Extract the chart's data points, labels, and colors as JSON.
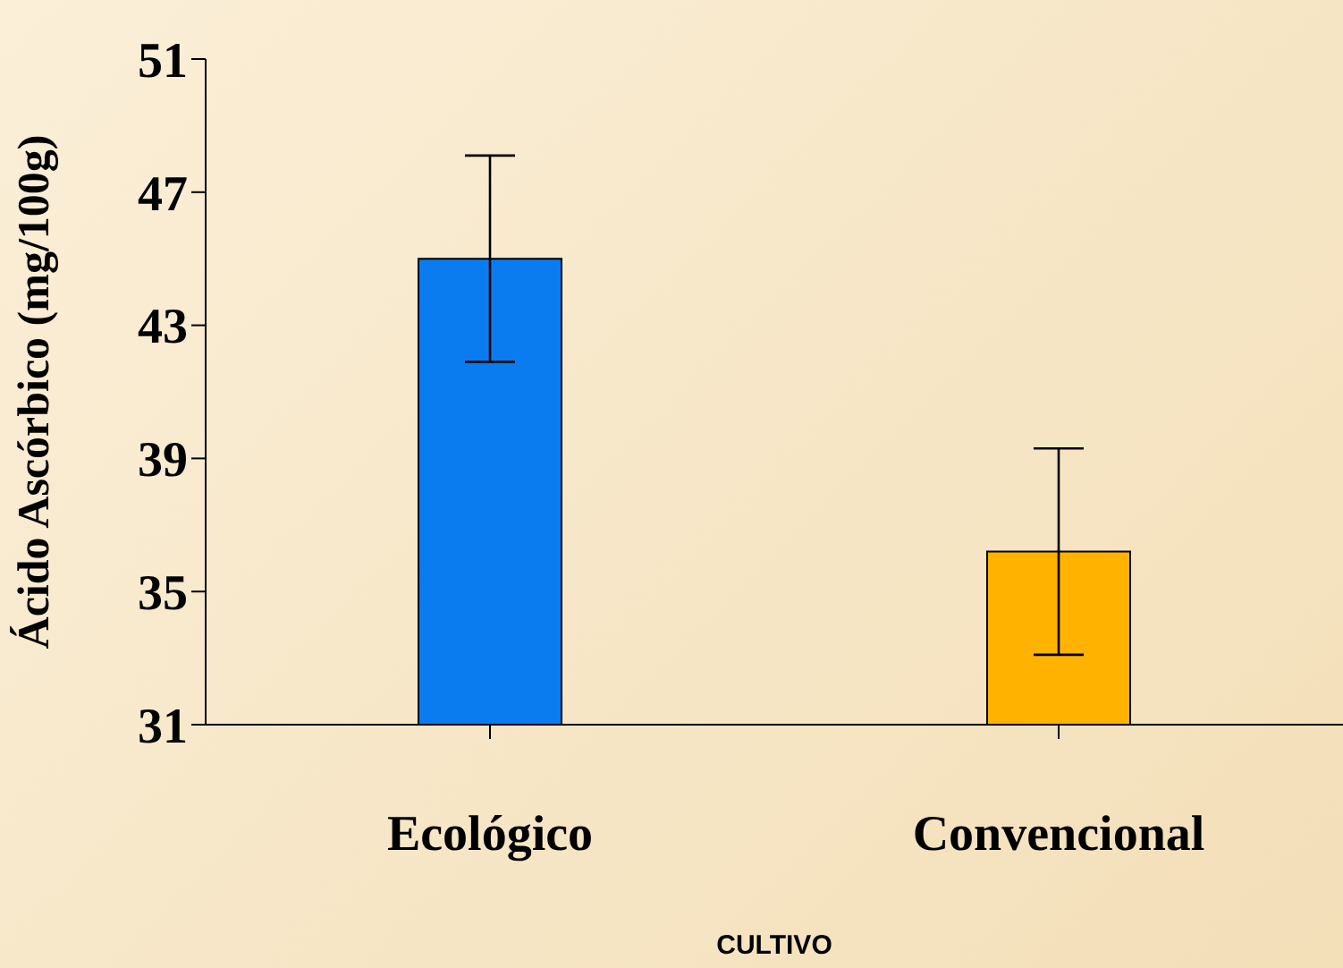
{
  "chart_data": {
    "type": "bar",
    "xlabel": "CULTIVO",
    "ylabel": "Ácido Ascórbico (mg/100g)",
    "categories": [
      "Ecológico",
      "Convencional"
    ],
    "values": [
      45.0,
      36.2
    ],
    "errors": [
      3.1,
      3.1
    ],
    "colors": [
      "#0a7cf0",
      "#ffb300"
    ],
    "ylim": [
      31,
      51
    ],
    "yticks": [
      31,
      35,
      39,
      43,
      47,
      51
    ],
    "grid": false
  }
}
